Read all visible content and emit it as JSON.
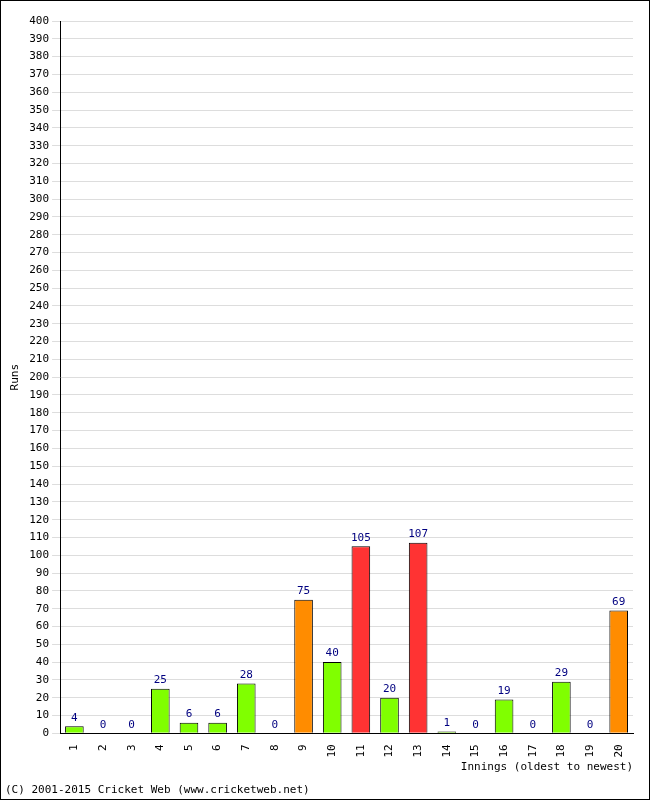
{
  "chart_data": {
    "type": "bar",
    "x_label": "Innings (oldest to newest)",
    "y_label": "Runs",
    "annotations": [
      "(C) 2001-2015 Cricket Web (www.cricketweb.net)"
    ],
    "categories": [
      "1",
      "2",
      "3",
      "4",
      "5",
      "6",
      "7",
      "8",
      "9",
      "10",
      "11",
      "12",
      "13",
      "14",
      "15",
      "16",
      "17",
      "18",
      "19",
      "20"
    ],
    "values": [
      4,
      0,
      0,
      25,
      6,
      6,
      28,
      0,
      75,
      40,
      105,
      20,
      107,
      1,
      0,
      19,
      0,
      29,
      0,
      69
    ],
    "colors": [
      "#80ff00",
      "#80ff00",
      "#80ff00",
      "#80ff00",
      "#80ff00",
      "#80ff00",
      "#80ff00",
      "#80ff00",
      "#ff8c00",
      "#80ff00",
      "#ff3333",
      "#80ff00",
      "#ff3333",
      "#80ff00",
      "#80ff00",
      "#80ff00",
      "#80ff00",
      "#80ff00",
      "#80ff00",
      "#ff8c00"
    ],
    "ylim": [
      0,
      400
    ],
    "yticks": [
      0,
      10,
      20,
      30,
      40,
      50,
      60,
      70,
      80,
      90,
      100,
      110,
      120,
      130,
      140,
      150,
      160,
      170,
      180,
      190,
      200,
      210,
      220,
      230,
      240,
      250,
      260,
      270,
      280,
      290,
      300,
      310,
      320,
      330,
      340,
      350,
      360,
      370,
      380,
      390,
      400
    ],
    "grid": true,
    "data_labels": true
  }
}
